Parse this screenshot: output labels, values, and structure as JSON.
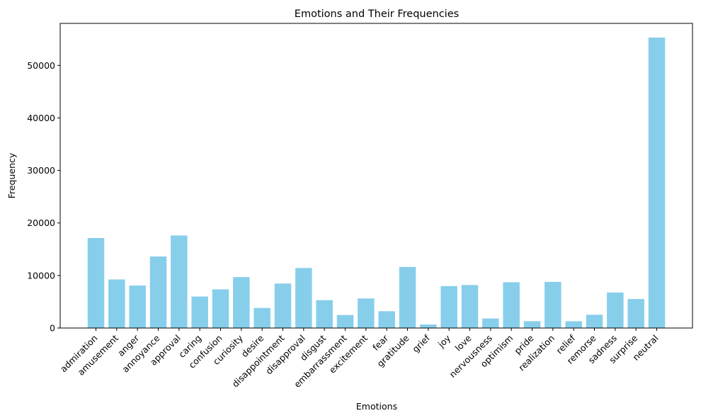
{
  "chart_data": {
    "type": "bar",
    "title": "Emotions and Their Frequencies",
    "xlabel": "Emotions",
    "ylabel": "Frequency",
    "categories": [
      "admiration",
      "amusement",
      "anger",
      "annoyance",
      "approval",
      "caring",
      "confusion",
      "curiosity",
      "desire",
      "disappointment",
      "disapproval",
      "disgust",
      "embarrassment",
      "excitement",
      "fear",
      "gratitude",
      "grief",
      "joy",
      "love",
      "nervousness",
      "optimism",
      "pride",
      "realization",
      "relief",
      "remorse",
      "sadness",
      "surprise",
      "neutral"
    ],
    "values": [
      17131,
      9245,
      8084,
      13618,
      17620,
      5999,
      7359,
      9692,
      3817,
      8469,
      11424,
      5301,
      2476,
      5629,
      3197,
      11625,
      673,
      7983,
      8191,
      1810,
      8715,
      1302,
      8785,
      1289,
      2525,
      6758,
      5514,
      55298
    ],
    "ylim": [
      0,
      58000
    ],
    "yticks": [
      0,
      10000,
      20000,
      30000,
      40000,
      50000
    ],
    "grid": false,
    "bar_color": "#87ceeb"
  }
}
